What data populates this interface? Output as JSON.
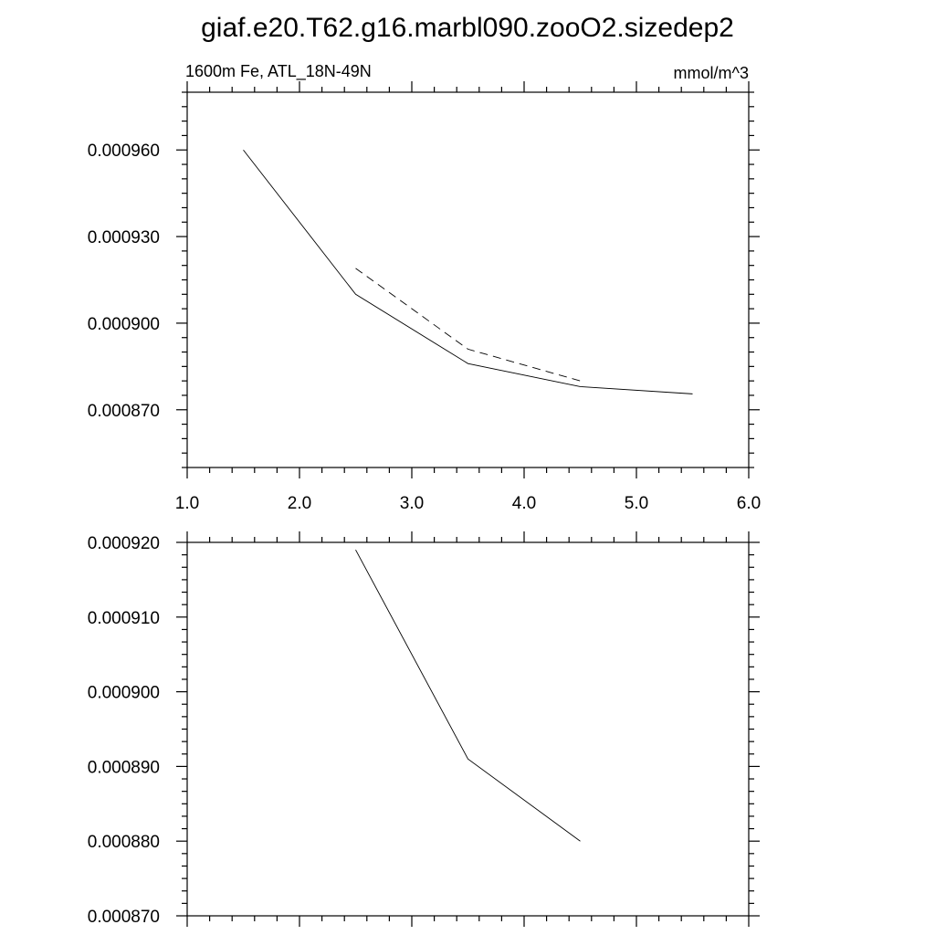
{
  "chart_data": [
    {
      "type": "line",
      "title": "giaf.e20.T62.g16.marbl090.zooO2.sizedep2",
      "left_label": "1600m Fe, ATL_18N-49N",
      "right_label": "mmol/m^3",
      "xlim": [
        1.0,
        6.0
      ],
      "ylim": [
        0.00085,
        0.00098
      ],
      "x_ticks": [
        1.0,
        2.0,
        3.0,
        4.0,
        5.0,
        6.0
      ],
      "x_tick_labels": [
        "1.0",
        "2.0",
        "3.0",
        "4.0",
        "5.0",
        "6.0"
      ],
      "y_ticks": [
        0.00087,
        0.0009,
        0.00093,
        0.00096
      ],
      "y_tick_labels": [
        "0.000870",
        "0.000900",
        "0.000930",
        "0.000960"
      ],
      "series": [
        {
          "style": "solid",
          "color": "#000000",
          "x": [
            1.5,
            2.5,
            3.5,
            4.5,
            5.5
          ],
          "y": [
            0.00096,
            0.00091,
            0.000886,
            0.000878,
            0.0008755
          ]
        },
        {
          "style": "dashed",
          "color": "#000000",
          "x": [
            2.5,
            3.5,
            4.5
          ],
          "y": [
            0.000919,
            0.000891,
            0.00088
          ]
        }
      ]
    },
    {
      "type": "line",
      "xlim": [
        1.0,
        6.0
      ],
      "ylim": [
        0.00087,
        0.00092
      ],
      "y_ticks": [
        0.00087,
        0.00088,
        0.00089,
        0.0009,
        0.00091,
        0.00092
      ],
      "y_tick_labels": [
        "0.000870",
        "0.000880",
        "0.000890",
        "0.000900",
        "0.000910",
        "0.000920"
      ],
      "series": [
        {
          "style": "solid",
          "color": "#000000",
          "x": [
            2.5,
            3.5,
            4.5
          ],
          "y": [
            0.000919,
            0.000891,
            0.00088
          ]
        }
      ]
    }
  ]
}
